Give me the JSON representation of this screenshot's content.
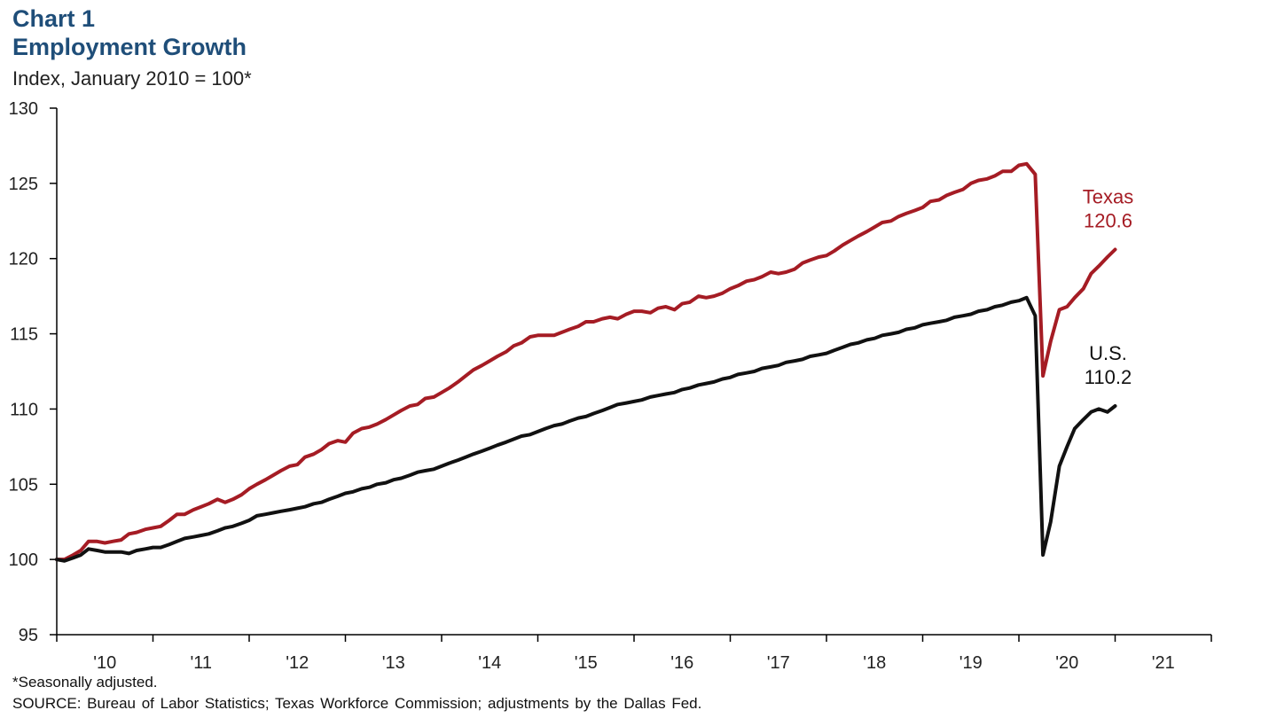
{
  "header": {
    "chart_number": "Chart 1",
    "title": "Employment Growth",
    "subtitle": "Index, January 2010 = 100*"
  },
  "footer": {
    "note": "*Seasonally adjusted.",
    "source": "SOURCE: Bureau of Labor Statistics; Texas Workforce Commission; adjustments by the Dallas Fed."
  },
  "chart_data": {
    "type": "line",
    "title": "Employment Growth",
    "ylabel": "Index, January 2010 = 100*",
    "xlabel": "",
    "ylim": [
      95,
      130
    ],
    "yticks": [
      95,
      100,
      105,
      110,
      115,
      120,
      125,
      130
    ],
    "xlim": [
      2010.0,
      2022.0
    ],
    "xtick_labels": [
      {
        "x": 2010.5,
        "label": "'10"
      },
      {
        "x": 2011.5,
        "label": "'11"
      },
      {
        "x": 2012.5,
        "label": "'12"
      },
      {
        "x": 2013.5,
        "label": "'13"
      },
      {
        "x": 2014.5,
        "label": "'14"
      },
      {
        "x": 2015.5,
        "label": "'15"
      },
      {
        "x": 2016.5,
        "label": "'16"
      },
      {
        "x": 2017.5,
        "label": "'17"
      },
      {
        "x": 2018.5,
        "label": "'18"
      },
      {
        "x": 2019.5,
        "label": "'19"
      },
      {
        "x": 2020.5,
        "label": "'20"
      },
      {
        "x": 2021.5,
        "label": "'21"
      }
    ],
    "grid": false,
    "legend": "none",
    "series": [
      {
        "name": "Texas",
        "color": "#a51c24",
        "end_label": "Texas",
        "end_value": "120.6",
        "points": [
          [
            2010.0,
            100.0
          ],
          [
            2010.08,
            100.0
          ],
          [
            2010.17,
            100.3
          ],
          [
            2010.25,
            100.6
          ],
          [
            2010.33,
            101.2
          ],
          [
            2010.42,
            101.2
          ],
          [
            2010.5,
            101.1
          ],
          [
            2010.58,
            101.2
          ],
          [
            2010.67,
            101.3
          ],
          [
            2010.75,
            101.7
          ],
          [
            2010.83,
            101.8
          ],
          [
            2010.92,
            102.0
          ],
          [
            2011.0,
            102.1
          ],
          [
            2011.08,
            102.2
          ],
          [
            2011.17,
            102.6
          ],
          [
            2011.25,
            103.0
          ],
          [
            2011.33,
            103.0
          ],
          [
            2011.42,
            103.3
          ],
          [
            2011.5,
            103.5
          ],
          [
            2011.58,
            103.7
          ],
          [
            2011.67,
            104.0
          ],
          [
            2011.75,
            103.8
          ],
          [
            2011.83,
            104.0
          ],
          [
            2011.92,
            104.3
          ],
          [
            2012.0,
            104.7
          ],
          [
            2012.08,
            105.0
          ],
          [
            2012.17,
            105.3
          ],
          [
            2012.25,
            105.6
          ],
          [
            2012.33,
            105.9
          ],
          [
            2012.42,
            106.2
          ],
          [
            2012.5,
            106.3
          ],
          [
            2012.58,
            106.8
          ],
          [
            2012.67,
            107.0
          ],
          [
            2012.75,
            107.3
          ],
          [
            2012.83,
            107.7
          ],
          [
            2012.92,
            107.9
          ],
          [
            2013.0,
            107.8
          ],
          [
            2013.08,
            108.4
          ],
          [
            2013.17,
            108.7
          ],
          [
            2013.25,
            108.8
          ],
          [
            2013.33,
            109.0
          ],
          [
            2013.42,
            109.3
          ],
          [
            2013.5,
            109.6
          ],
          [
            2013.58,
            109.9
          ],
          [
            2013.67,
            110.2
          ],
          [
            2013.75,
            110.3
          ],
          [
            2013.83,
            110.7
          ],
          [
            2013.92,
            110.8
          ],
          [
            2014.0,
            111.1
          ],
          [
            2014.08,
            111.4
          ],
          [
            2014.17,
            111.8
          ],
          [
            2014.25,
            112.2
          ],
          [
            2014.33,
            112.6
          ],
          [
            2014.42,
            112.9
          ],
          [
            2014.5,
            113.2
          ],
          [
            2014.58,
            113.5
          ],
          [
            2014.67,
            113.8
          ],
          [
            2014.75,
            114.2
          ],
          [
            2014.83,
            114.4
          ],
          [
            2014.92,
            114.8
          ],
          [
            2015.0,
            114.9
          ],
          [
            2015.08,
            114.9
          ],
          [
            2015.17,
            114.9
          ],
          [
            2015.25,
            115.1
          ],
          [
            2015.33,
            115.3
          ],
          [
            2015.42,
            115.5
          ],
          [
            2015.5,
            115.8
          ],
          [
            2015.58,
            115.8
          ],
          [
            2015.67,
            116.0
          ],
          [
            2015.75,
            116.1
          ],
          [
            2015.83,
            116.0
          ],
          [
            2015.92,
            116.3
          ],
          [
            2016.0,
            116.5
          ],
          [
            2016.08,
            116.5
          ],
          [
            2016.17,
            116.4
          ],
          [
            2016.25,
            116.7
          ],
          [
            2016.33,
            116.8
          ],
          [
            2016.42,
            116.6
          ],
          [
            2016.5,
            117.0
          ],
          [
            2016.58,
            117.1
          ],
          [
            2016.67,
            117.5
          ],
          [
            2016.75,
            117.4
          ],
          [
            2016.83,
            117.5
          ],
          [
            2016.92,
            117.7
          ],
          [
            2017.0,
            118.0
          ],
          [
            2017.08,
            118.2
          ],
          [
            2017.17,
            118.5
          ],
          [
            2017.25,
            118.6
          ],
          [
            2017.33,
            118.8
          ],
          [
            2017.42,
            119.1
          ],
          [
            2017.5,
            119.0
          ],
          [
            2017.58,
            119.1
          ],
          [
            2017.67,
            119.3
          ],
          [
            2017.75,
            119.7
          ],
          [
            2017.83,
            119.9
          ],
          [
            2017.92,
            120.1
          ],
          [
            2018.0,
            120.2
          ],
          [
            2018.08,
            120.5
          ],
          [
            2018.17,
            120.9
          ],
          [
            2018.25,
            121.2
          ],
          [
            2018.33,
            121.5
          ],
          [
            2018.42,
            121.8
          ],
          [
            2018.5,
            122.1
          ],
          [
            2018.58,
            122.4
          ],
          [
            2018.67,
            122.5
          ],
          [
            2018.75,
            122.8
          ],
          [
            2018.83,
            123.0
          ],
          [
            2018.92,
            123.2
          ],
          [
            2019.0,
            123.4
          ],
          [
            2019.08,
            123.8
          ],
          [
            2019.17,
            123.9
          ],
          [
            2019.25,
            124.2
          ],
          [
            2019.33,
            124.4
          ],
          [
            2019.42,
            124.6
          ],
          [
            2019.5,
            125.0
          ],
          [
            2019.58,
            125.2
          ],
          [
            2019.67,
            125.3
          ],
          [
            2019.75,
            125.5
          ],
          [
            2019.83,
            125.8
          ],
          [
            2019.92,
            125.8
          ],
          [
            2020.0,
            126.2
          ],
          [
            2020.08,
            126.3
          ],
          [
            2020.17,
            125.6
          ],
          [
            2020.25,
            112.2
          ],
          [
            2020.33,
            114.5
          ],
          [
            2020.42,
            116.6
          ],
          [
            2020.5,
            116.8
          ],
          [
            2020.58,
            117.4
          ],
          [
            2020.67,
            118.0
          ],
          [
            2020.75,
            119.0
          ],
          [
            2020.83,
            119.5
          ],
          [
            2020.92,
            120.1
          ],
          [
            2021.0,
            120.6
          ]
        ]
      },
      {
        "name": "U.S.",
        "color": "#111111",
        "end_label": "U.S.",
        "end_value": "110.2",
        "points": [
          [
            2010.0,
            100.0
          ],
          [
            2010.08,
            99.9
          ],
          [
            2010.17,
            100.1
          ],
          [
            2010.25,
            100.3
          ],
          [
            2010.33,
            100.7
          ],
          [
            2010.42,
            100.6
          ],
          [
            2010.5,
            100.5
          ],
          [
            2010.58,
            100.5
          ],
          [
            2010.67,
            100.5
          ],
          [
            2010.75,
            100.4
          ],
          [
            2010.83,
            100.6
          ],
          [
            2010.92,
            100.7
          ],
          [
            2011.0,
            100.8
          ],
          [
            2011.08,
            100.8
          ],
          [
            2011.17,
            101.0
          ],
          [
            2011.25,
            101.2
          ],
          [
            2011.33,
            101.4
          ],
          [
            2011.42,
            101.5
          ],
          [
            2011.5,
            101.6
          ],
          [
            2011.58,
            101.7
          ],
          [
            2011.67,
            101.9
          ],
          [
            2011.75,
            102.1
          ],
          [
            2011.83,
            102.2
          ],
          [
            2011.92,
            102.4
          ],
          [
            2012.0,
            102.6
          ],
          [
            2012.08,
            102.9
          ],
          [
            2012.17,
            103.0
          ],
          [
            2012.25,
            103.1
          ],
          [
            2012.33,
            103.2
          ],
          [
            2012.42,
            103.3
          ],
          [
            2012.5,
            103.4
          ],
          [
            2012.58,
            103.5
          ],
          [
            2012.67,
            103.7
          ],
          [
            2012.75,
            103.8
          ],
          [
            2012.83,
            104.0
          ],
          [
            2012.92,
            104.2
          ],
          [
            2013.0,
            104.4
          ],
          [
            2013.08,
            104.5
          ],
          [
            2013.17,
            104.7
          ],
          [
            2013.25,
            104.8
          ],
          [
            2013.33,
            105.0
          ],
          [
            2013.42,
            105.1
          ],
          [
            2013.5,
            105.3
          ],
          [
            2013.58,
            105.4
          ],
          [
            2013.67,
            105.6
          ],
          [
            2013.75,
            105.8
          ],
          [
            2013.83,
            105.9
          ],
          [
            2013.92,
            106.0
          ],
          [
            2014.0,
            106.2
          ],
          [
            2014.08,
            106.4
          ],
          [
            2014.17,
            106.6
          ],
          [
            2014.25,
            106.8
          ],
          [
            2014.33,
            107.0
          ],
          [
            2014.42,
            107.2
          ],
          [
            2014.5,
            107.4
          ],
          [
            2014.58,
            107.6
          ],
          [
            2014.67,
            107.8
          ],
          [
            2014.75,
            108.0
          ],
          [
            2014.83,
            108.2
          ],
          [
            2014.92,
            108.3
          ],
          [
            2015.0,
            108.5
          ],
          [
            2015.08,
            108.7
          ],
          [
            2015.17,
            108.9
          ],
          [
            2015.25,
            109.0
          ],
          [
            2015.33,
            109.2
          ],
          [
            2015.42,
            109.4
          ],
          [
            2015.5,
            109.5
          ],
          [
            2015.58,
            109.7
          ],
          [
            2015.67,
            109.9
          ],
          [
            2015.75,
            110.1
          ],
          [
            2015.83,
            110.3
          ],
          [
            2015.92,
            110.4
          ],
          [
            2016.0,
            110.5
          ],
          [
            2016.08,
            110.6
          ],
          [
            2016.17,
            110.8
          ],
          [
            2016.25,
            110.9
          ],
          [
            2016.33,
            111.0
          ],
          [
            2016.42,
            111.1
          ],
          [
            2016.5,
            111.3
          ],
          [
            2016.58,
            111.4
          ],
          [
            2016.67,
            111.6
          ],
          [
            2016.75,
            111.7
          ],
          [
            2016.83,
            111.8
          ],
          [
            2016.92,
            112.0
          ],
          [
            2017.0,
            112.1
          ],
          [
            2017.08,
            112.3
          ],
          [
            2017.17,
            112.4
          ],
          [
            2017.25,
            112.5
          ],
          [
            2017.33,
            112.7
          ],
          [
            2017.42,
            112.8
          ],
          [
            2017.5,
            112.9
          ],
          [
            2017.58,
            113.1
          ],
          [
            2017.67,
            113.2
          ],
          [
            2017.75,
            113.3
          ],
          [
            2017.83,
            113.5
          ],
          [
            2017.92,
            113.6
          ],
          [
            2018.0,
            113.7
          ],
          [
            2018.08,
            113.9
          ],
          [
            2018.17,
            114.1
          ],
          [
            2018.25,
            114.3
          ],
          [
            2018.33,
            114.4
          ],
          [
            2018.42,
            114.6
          ],
          [
            2018.5,
            114.7
          ],
          [
            2018.58,
            114.9
          ],
          [
            2018.67,
            115.0
          ],
          [
            2018.75,
            115.1
          ],
          [
            2018.83,
            115.3
          ],
          [
            2018.92,
            115.4
          ],
          [
            2019.0,
            115.6
          ],
          [
            2019.08,
            115.7
          ],
          [
            2019.17,
            115.8
          ],
          [
            2019.25,
            115.9
          ],
          [
            2019.33,
            116.1
          ],
          [
            2019.42,
            116.2
          ],
          [
            2019.5,
            116.3
          ],
          [
            2019.58,
            116.5
          ],
          [
            2019.67,
            116.6
          ],
          [
            2019.75,
            116.8
          ],
          [
            2019.83,
            116.9
          ],
          [
            2019.92,
            117.1
          ],
          [
            2020.0,
            117.2
          ],
          [
            2020.08,
            117.4
          ],
          [
            2020.17,
            116.2
          ],
          [
            2020.25,
            100.3
          ],
          [
            2020.33,
            102.5
          ],
          [
            2020.42,
            106.2
          ],
          [
            2020.5,
            107.5
          ],
          [
            2020.58,
            108.7
          ],
          [
            2020.67,
            109.3
          ],
          [
            2020.75,
            109.8
          ],
          [
            2020.83,
            110.0
          ],
          [
            2020.92,
            109.8
          ],
          [
            2021.0,
            110.2
          ]
        ]
      }
    ]
  }
}
